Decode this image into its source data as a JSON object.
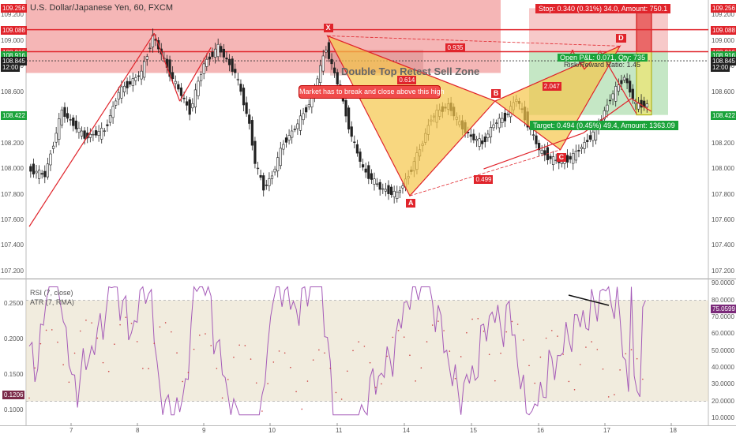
{
  "chart_header": {
    "title": "U.S. Dollar/Japanese Yen, 60, FXCM"
  },
  "chart_data": {
    "type": "candlestick",
    "price_axis": {
      "ylim": [
        107.15,
        109.32
      ],
      "ticks": [
        "109.200",
        "109.000",
        "108.800",
        "108.600",
        "108.400",
        "108.200",
        "108.000",
        "107.800",
        "107.600",
        "107.400",
        "107.200"
      ],
      "boxes": [
        {
          "label": "109.256",
          "value": 109.256,
          "color": "#e0242b"
        },
        {
          "label": "109.088",
          "value": 109.088,
          "color": "#e0242b"
        },
        {
          "label": "108.916",
          "value": 108.916,
          "color": "#e0242b"
        },
        {
          "label": "108.916",
          "value": 108.89,
          "color": "#1aa33a"
        },
        {
          "label": "108.845",
          "value": 108.845,
          "color": "#222222"
        },
        {
          "label": "12:00",
          "value": 108.795,
          "color": "#222222"
        },
        {
          "label": "108.422",
          "value": 108.422,
          "color": "#1aa33a"
        }
      ]
    },
    "x_axis": {
      "labels": [
        "7",
        "8",
        "9",
        "10",
        "11",
        "14",
        "15",
        "16",
        "17",
        "18"
      ]
    },
    "horizontal_lines": [
      109.088,
      108.916
    ],
    "harmonic_pattern": {
      "points": [
        {
          "label": "X",
          "bar": 105,
          "price": 109.04
        },
        {
          "label": "A",
          "bar": 134,
          "price": 107.79
        },
        {
          "label": "B",
          "bar": 164,
          "price": 108.53
        },
        {
          "label": "C",
          "bar": 187,
          "price": 108.15
        },
        {
          "label": "D",
          "bar": 208,
          "price": 108.96
        }
      ],
      "ratios": [
        {
          "text": "0.935",
          "bar": 150,
          "price": 108.95
        },
        {
          "text": "0.614",
          "bar": 133,
          "price": 108.7
        },
        {
          "text": "2.047",
          "bar": 184,
          "price": 108.65
        },
        {
          "text": "0.499",
          "bar": 160,
          "price": 107.92
        }
      ],
      "fill_color": "#f5c64a"
    },
    "zone_label": "Double Top Retest Sell Zone",
    "callout": "Market has to break and close above this high",
    "position": {
      "stop_label": "Stop: 0.340 (0.31%) 34.0, Amount: 750.1",
      "target_label": "Target: 0.494 (0.45%) 49.4, Amount: 1363.09",
      "pnl_label": "Open P&L: 0.071, Qty: 735",
      "rr_label": "Risk/Reward Ratio: 1.45",
      "entry": 108.916,
      "stop": 109.256,
      "target": 108.422
    },
    "rsi": {
      "label": "RSI (7, close)",
      "ylim": [
        10,
        92
      ],
      "ticks": [
        "90.0000",
        "80.0000",
        "70.0000",
        "60.0000",
        "50.0000",
        "40.0000",
        "30.0000",
        "20.0000",
        "10.0000"
      ],
      "upper": 80,
      "lower": 20,
      "current_label": "75.0599",
      "current": 75.06
    },
    "atr": {
      "label": "ATR (7, RMA)",
      "ticks": [
        "0.2500",
        "0.2000",
        "0.1500",
        "0.1000"
      ],
      "current_label": "0.1206",
      "current": 0.1206
    }
  }
}
